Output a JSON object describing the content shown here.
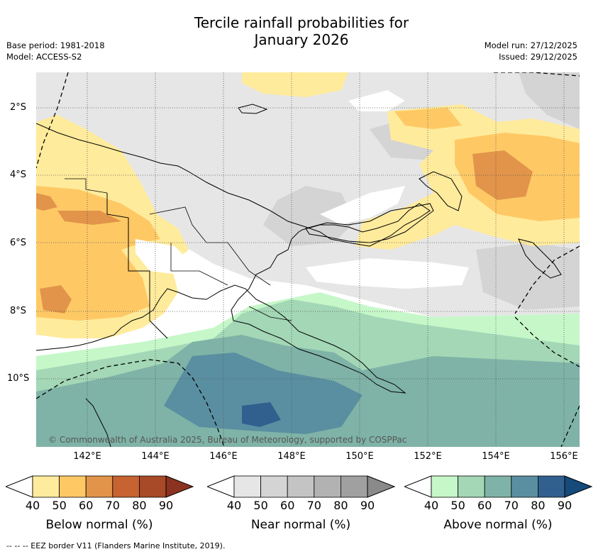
{
  "title": {
    "line1": "Tercile rainfall probabilities for",
    "line2": "January 2026"
  },
  "info_left": {
    "base_period": "Base period: 1981-2018",
    "model": "Model: ACCESS-S2"
  },
  "info_right": {
    "model_run": "Model run: 27/12/2025",
    "issued": "Issued: 29/12/2025"
  },
  "map": {
    "lat_labels": [
      "2°S",
      "4°S",
      "6°S",
      "8°S",
      "10°S"
    ],
    "lon_labels": [
      "142°E",
      "144°E",
      "146°E",
      "148°E",
      "150°E",
      "152°E",
      "154°E",
      "156°E"
    ],
    "copyright": "© Commonwealth of Australia 2025, Bureau of Meteorology, supported by COSPPac"
  },
  "colorbars": [
    {
      "title": "Below normal (%)",
      "ticks": [
        "40",
        "50",
        "60",
        "70",
        "80",
        "90"
      ],
      "colors": [
        "#ffffff",
        "#ffeb9c",
        "#fec965",
        "#e1944a",
        "#c76231",
        "#a84a27",
        "#8c3220"
      ]
    },
    {
      "title": "Near normal (%)",
      "ticks": [
        "40",
        "50",
        "60",
        "70",
        "80",
        "90"
      ],
      "colors": [
        "#ffffff",
        "#e6e6e6",
        "#d4d4d4",
        "#c4c4c4",
        "#b2b2b2",
        "#a0a0a0",
        "#8a8a8a"
      ]
    },
    {
      "title": "Above normal (%)",
      "ticks": [
        "40",
        "50",
        "60",
        "70",
        "80",
        "90"
      ],
      "colors": [
        "#ffffff",
        "#c6f7c9",
        "#a3d7b6",
        "#7fb3a7",
        "#5a8fa1",
        "#31608f",
        "#154a7b"
      ]
    }
  ],
  "footer": "-- -- -- EEZ border V11 (Flanders Marine Institute, 2019)."
}
